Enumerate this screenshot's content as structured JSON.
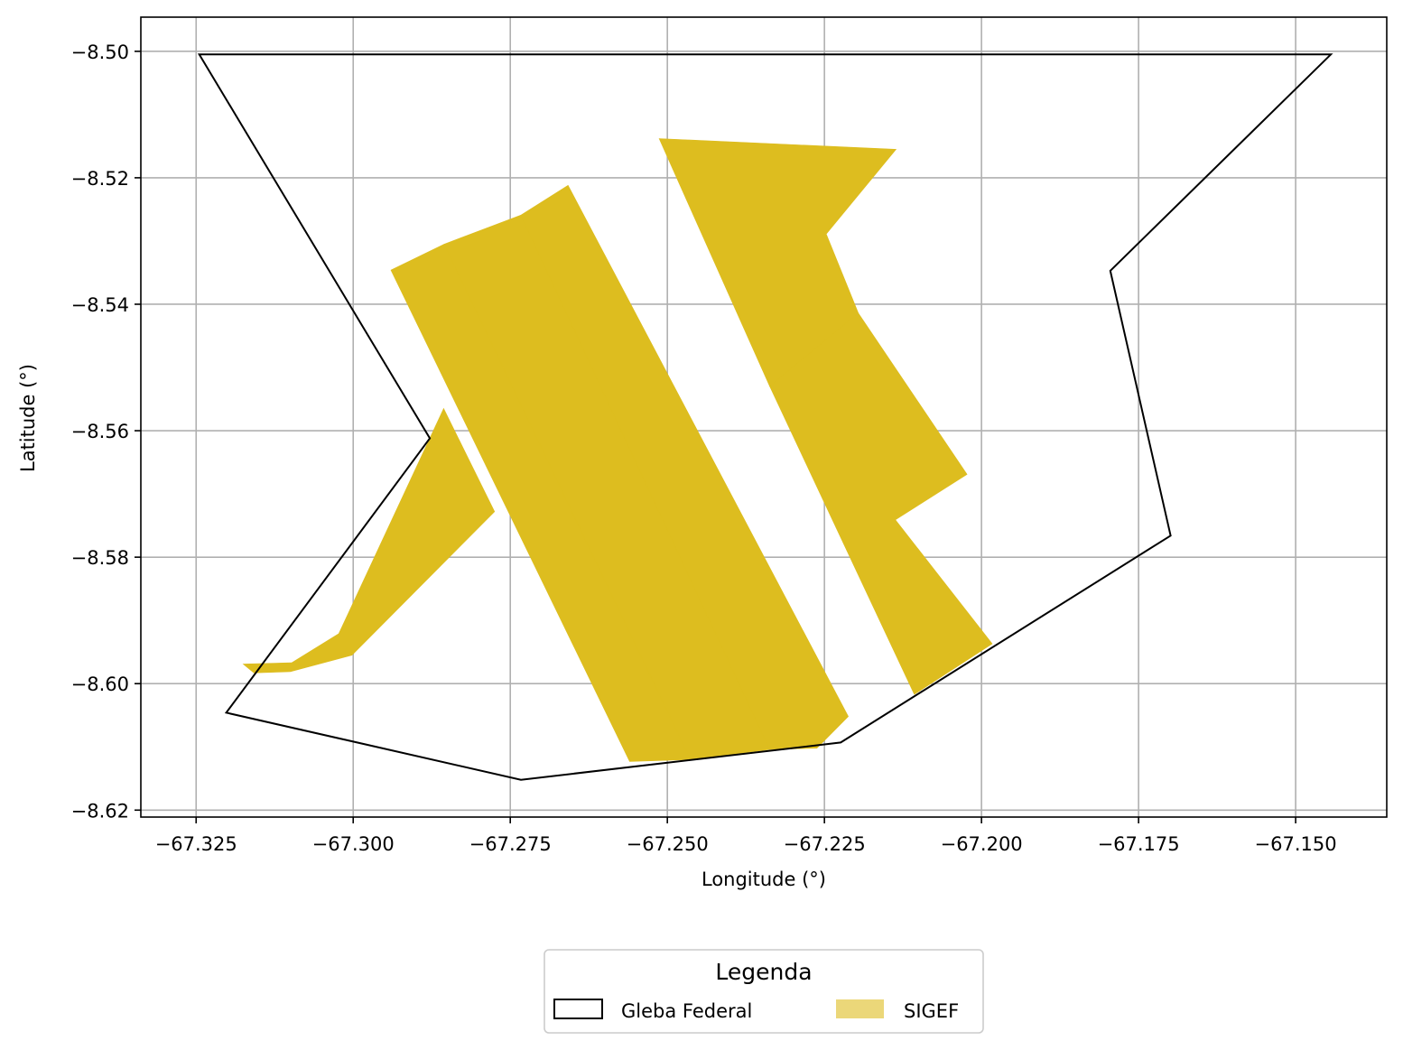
{
  "chart_data": {
    "type": "map",
    "xlabel": "Longitude (°)",
    "ylabel": "Latitude (°)",
    "xlim": [
      -67.3338,
      -67.1355
    ],
    "ylim": [
      -8.6211,
      -8.4946
    ],
    "grid": true,
    "xticks": [
      -67.325,
      -67.3,
      -67.275,
      -67.25,
      -67.225,
      -67.2,
      -67.175,
      -67.15
    ],
    "xtick_labels": [
      "−67.325",
      "−67.300",
      "−67.275",
      "−67.250",
      "−67.225",
      "−67.200",
      "−67.175",
      "−67.150"
    ],
    "yticks": [
      -8.5,
      -8.52,
      -8.54,
      -8.56,
      -8.58,
      -8.6,
      -8.62
    ],
    "ytick_labels": [
      "−8.50",
      "−8.52",
      "−8.54",
      "−8.56",
      "−8.58",
      "−8.60",
      "−8.62"
    ],
    "legend": {
      "title": "Legenda",
      "placement": "bottom-center",
      "entries": [
        {
          "label": "Gleba Federal",
          "style": "outline"
        },
        {
          "label": "SIGEF",
          "style": "fill"
        }
      ]
    },
    "colors": {
      "gleba_edge": "#000000",
      "sigef_fill": "#DDBD1F",
      "grid": "#b0b0b0"
    },
    "layers": [
      {
        "name": "Gleba Federal",
        "polygons": [
          [
            [
              -67.3245,
              -8.5005
            ],
            [
              -67.1444,
              -8.5005
            ],
            [
              -67.1795,
              -8.5347
            ],
            [
              -67.1699,
              -8.5766
            ],
            [
              -67.2224,
              -8.6093
            ],
            [
              -67.2733,
              -8.6152
            ],
            [
              -67.3202,
              -8.6046
            ],
            [
              -67.2878,
              -8.5612
            ],
            [
              -67.3245,
              -8.5005
            ]
          ]
        ]
      },
      {
        "name": "SIGEF",
        "polygons": [
          [
            [
              -67.294,
              -8.5346
            ],
            [
              -67.2855,
              -8.5305
            ],
            [
              -67.2463,
              -8.612
            ],
            [
              -67.256,
              -8.6123
            ]
          ],
          [
            [
              -67.2855,
              -8.5305
            ],
            [
              -67.2733,
              -8.5259
            ],
            [
              -67.2337,
              -8.6104
            ],
            [
              -67.2463,
              -8.612
            ]
          ],
          [
            [
              -67.2733,
              -8.5259
            ],
            [
              -67.2658,
              -8.5212
            ],
            [
              -67.2212,
              -8.6052
            ],
            [
              -67.2262,
              -8.6102
            ],
            [
              -67.2337,
              -8.6104
            ]
          ],
          [
            [
              -67.2513,
              -8.5138
            ],
            [
              -67.2136,
              -8.5155
            ],
            [
              -67.2247,
              -8.5289
            ],
            [
              -67.2196,
              -8.5414
            ],
            [
              -67.2337,
              -8.553
            ]
          ],
          [
            [
              -67.2337,
              -8.553
            ],
            [
              -67.2196,
              -8.5414
            ],
            [
              -67.2023,
              -8.5669
            ],
            [
              -67.2137,
              -8.5741
            ],
            [
              -67.1983,
              -8.5937
            ],
            [
              -67.2107,
              -8.6017
            ]
          ],
          [
            [
              -67.2856,
              -8.5565
            ],
            [
              -67.3023,
              -8.5921
            ],
            [
              -67.3098,
              -8.5967
            ],
            [
              -67.3175,
              -8.5969
            ],
            [
              -67.3158,
              -8.5983
            ],
            [
              -67.31,
              -8.5981
            ],
            [
              -67.3002,
              -8.5955
            ],
            [
              -67.2775,
              -8.5728
            ]
          ]
        ]
      }
    ]
  }
}
